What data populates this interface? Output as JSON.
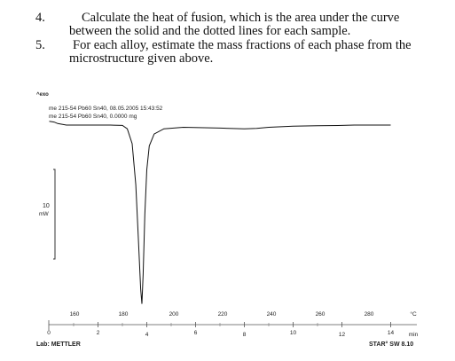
{
  "questions": [
    {
      "num": "4.",
      "line1": "Calculate the heat of fusion, which is the area under the curve",
      "line2": "between the solid and the dotted lines for each sample."
    },
    {
      "num": "5.",
      "line1": "For each alloy, estimate the mass fractions of each phase from the",
      "line2": "microstructure given above."
    }
  ],
  "chart_header": {
    "exo_label": "^exo",
    "line1": "me 215-54 Pb60 Sn40, 08.05.2005 15:43:52",
    "line2": "me 215-54 Pb60 Sn40, 0.0000 mg"
  },
  "scale_bar": {
    "value": "10",
    "unit": "mW"
  },
  "lab": "Lab: METTLER",
  "software": "STAR° SW 8.10",
  "chart_data": {
    "type": "line",
    "temp_axis": {
      "ticks": [
        "160",
        "180",
        "200",
        "220",
        "240",
        "260",
        "280"
      ],
      "unit": "°C"
    },
    "time_axis": {
      "ticks": [
        "0",
        "2",
        "4",
        "6",
        "8",
        "10",
        "12",
        "14"
      ],
      "unit": "min"
    },
    "series": [
      {
        "x": [
          0,
          0.2,
          0.35,
          0.7,
          1.5,
          2.5,
          3.0,
          3.2,
          3.4,
          3.55,
          3.65,
          3.75,
          3.8,
          3.85,
          3.92,
          4.0,
          4.1,
          4.3,
          4.7,
          5.5,
          7,
          8,
          8.5,
          9.0,
          10,
          11,
          12,
          12.5,
          13,
          14
        ],
        "y": [
          0.5,
          0.4,
          0.2,
          0,
          0,
          0,
          -0.05,
          -0.5,
          -2.5,
          -8,
          -15,
          -22,
          -24,
          -20,
          -12,
          -6,
          -2.8,
          -1.2,
          -0.5,
          -0.3,
          -0.4,
          -0.5,
          -0.45,
          -0.3,
          -0.15,
          -0.1,
          -0.05,
          0,
          0,
          0
        ]
      }
    ]
  }
}
